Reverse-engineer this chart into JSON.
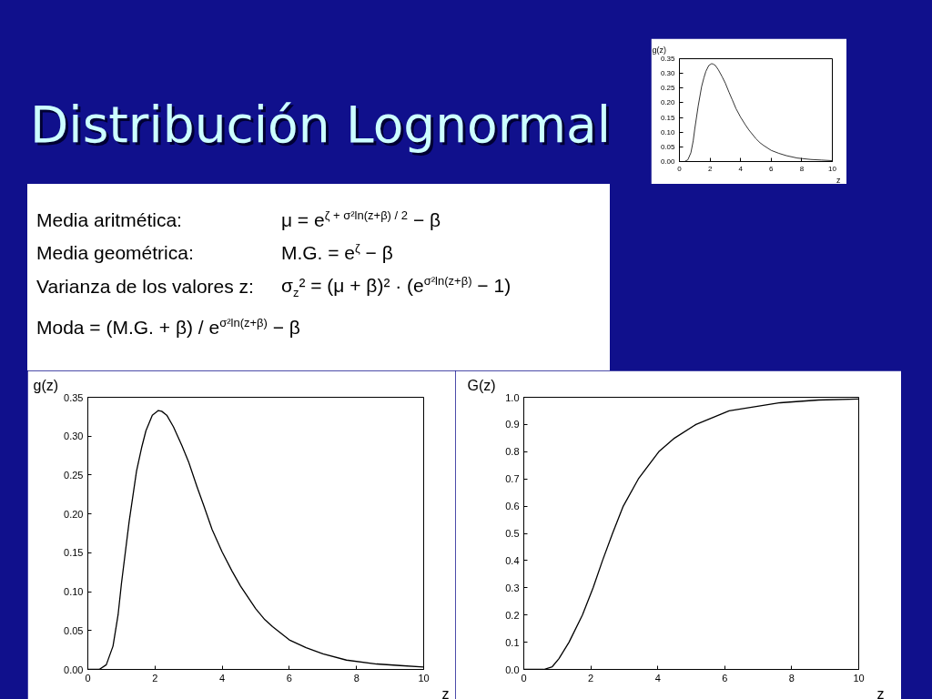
{
  "chart_data": [
    {
      "type": "other",
      "title": "Distribución Lognormal",
      "annotations": [
        "Media aritmética:",
        "μ = e$^{ζ + σ²ln(z+β) / 2}$ − β",
        "Media geométrica:",
        "M.G. = e$^{ζ}$ − β",
        "Varianza de los valores z:",
        "σ$_{z}$² = (μ + β)² · (e$^{σ²ln(z+β)}$ − 1)",
        "Moda = (M.G. + β) / e$^{σ²ln(z+β)}$ − β"
      ]
    },
    {
      "type": "line",
      "ylabel": "g(z)",
      "xlabel": "z",
      "x": [
        0,
        0.34,
        0.55,
        0.75,
        0.9,
        1.0,
        1.23,
        1.45,
        1.6,
        1.73,
        1.92,
        2.1,
        2.2,
        2.35,
        2.55,
        2.8,
        3.0,
        3.25,
        3.45,
        3.7,
        4.0,
        4.3,
        4.55,
        5.0,
        5.27,
        5.5,
        6.0,
        6.5,
        7.0,
        7.7,
        8.6,
        9.3,
        10
      ],
      "series": [
        {
          "color": "#000000",
          "values": [
            0,
            0,
            0.006,
            0.03,
            0.07,
            0.11,
            0.19,
            0.255,
            0.285,
            0.307,
            0.327,
            0.333,
            0.332,
            0.327,
            0.312,
            0.288,
            0.267,
            0.235,
            0.211,
            0.18,
            0.151,
            0.126,
            0.107,
            0.078,
            0.064,
            0.055,
            0.038,
            0.028,
            0.02,
            0.012,
            0.007,
            0.005,
            0.003
          ]
        }
      ],
      "xlim": [
        0,
        10
      ],
      "ylim": [
        0,
        0.35
      ],
      "xticks": [
        0,
        2,
        4,
        6,
        8,
        10
      ],
      "yticks": [
        {
          "value": 0,
          "label": "0.00"
        },
        0.05,
        {
          "value": 0.1,
          "label": "0.10"
        },
        0.15,
        {
          "value": 0.2,
          "label": "0.20"
        },
        0.25,
        {
          "value": 0.3,
          "label": "0.30"
        },
        0.35
      ]
    },
    {
      "type": "line",
      "ylabel": "g(z)",
      "xlabel": "z",
      "x": [
        0,
        0.34,
        0.55,
        0.75,
        0.9,
        1.0,
        1.23,
        1.45,
        1.6,
        1.73,
        1.92,
        2.1,
        2.2,
        2.35,
        2.55,
        2.8,
        3.0,
        3.25,
        3.45,
        3.7,
        4.0,
        4.3,
        4.55,
        5.0,
        5.27,
        5.5,
        6.0,
        6.5,
        7.0,
        7.7,
        8.6,
        9.3,
        10
      ],
      "series": [
        {
          "color": "#000000",
          "values": [
            0,
            0,
            0.006,
            0.03,
            0.07,
            0.11,
            0.19,
            0.255,
            0.285,
            0.307,
            0.327,
            0.333,
            0.332,
            0.327,
            0.312,
            0.288,
            0.267,
            0.235,
            0.211,
            0.18,
            0.151,
            0.126,
            0.107,
            0.078,
            0.064,
            0.055,
            0.038,
            0.028,
            0.02,
            0.012,
            0.007,
            0.005,
            0.003
          ]
        }
      ],
      "xlim": [
        0,
        10
      ],
      "ylim": [
        0,
        0.35
      ],
      "xticks": [
        0,
        2,
        4,
        6,
        8,
        10
      ],
      "yticks": [
        {
          "value": 0,
          "label": "0.00"
        },
        0.05,
        {
          "value": 0.1,
          "label": "0.10"
        },
        0.15,
        {
          "value": 0.2,
          "label": "0.20"
        },
        0.25,
        {
          "value": 0.3,
          "label": "0.30"
        },
        0.35
      ]
    },
    {
      "type": "line",
      "ylabel": "G(z)",
      "xlabel": "z",
      "x": [
        0,
        0.6,
        0.85,
        1.05,
        1.35,
        1.75,
        2.07,
        2.35,
        2.65,
        2.97,
        3.42,
        4.03,
        4.5,
        5.14,
        6.13,
        7.66,
        8.8,
        10
      ],
      "series": [
        {
          "color": "#000000",
          "values": [
            0,
            0,
            0.01,
            0.04,
            0.1,
            0.2,
            0.3,
            0.4,
            0.5,
            0.6,
            0.7,
            0.8,
            0.85,
            0.9,
            0.95,
            0.98,
            0.99,
            0.994
          ]
        }
      ],
      "xlim": [
        0,
        10
      ],
      "ylim": [
        0,
        1
      ],
      "xticks": [
        0,
        2,
        4,
        6,
        8,
        10
      ],
      "yticks": [
        {
          "value": 0,
          "label": "0.0"
        },
        0.1,
        0.2,
        0.3,
        0.4,
        0.5,
        0.6,
        0.7,
        0.8,
        0.9,
        {
          "value": 1,
          "label": "1.0"
        }
      ]
    }
  ]
}
